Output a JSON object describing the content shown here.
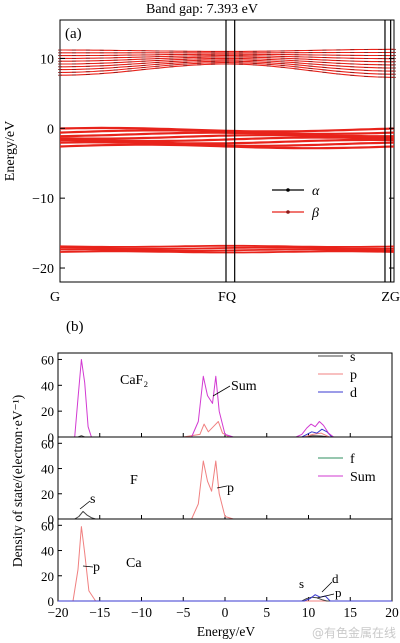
{
  "top_title": "Band gap: 7.393 eV",
  "watermark": "@有色金属在线",
  "colors": {
    "alpha": "#000000",
    "beta": "#e8231b",
    "s": "#444444",
    "p": "#f08080",
    "d": "#3a3ad0",
    "f": "#2f8f5f",
    "sum": "#d23ad2",
    "axis": "#000000"
  },
  "chart_data": [
    {
      "type": "line",
      "panel_label": "(a)",
      "ylabel": "Energy/eV",
      "ylim": [
        -22,
        15.5
      ],
      "yticks": [
        10,
        0,
        -10,
        -20
      ],
      "xticks": [
        {
          "label": "G",
          "x": 0
        },
        {
          "label": "FQ",
          "x": 0.5
        },
        {
          "label": "ZG",
          "x": 1.0
        }
      ],
      "high_symmetry_lines": [
        0.497,
        0.523,
        0.973,
        0.99
      ],
      "legend": {
        "placement": "lower-right",
        "entries": [
          "α",
          "β"
        ]
      },
      "series": [
        {
          "name": "β",
          "bands_group": "conduction",
          "edges_left": [
            7.6,
            11.2
          ],
          "edges_mid": [
            9.2,
            11.0
          ],
          "edges_right": [
            7.3,
            11.3
          ],
          "count": 10
        },
        {
          "name": "β",
          "bands_group": "valence",
          "edges": [
            -2.6,
            -0.2
          ],
          "count": 8
        },
        {
          "name": "β",
          "bands_group": "core",
          "edges": [
            -17.7,
            -16.9
          ],
          "count": 4
        }
      ]
    },
    {
      "type": "line",
      "panel_label": "(b)",
      "ylabel": "Density of state/(electron·eV⁻¹)",
      "xlabel": "Energy/eV",
      "xlim": [
        -20,
        20
      ],
      "xticks": [
        -20,
        -15,
        -10,
        -5,
        0,
        5,
        10,
        15,
        20
      ],
      "panels": [
        {
          "label": "CaF₂",
          "ylim": [
            0,
            65
          ],
          "yticks": [
            0,
            20,
            40,
            60
          ],
          "legend": [
            "s",
            "p",
            "d"
          ],
          "annotations": [
            "Sum"
          ],
          "series": [
            {
              "name": "s",
              "x": [
                -20,
                -17.6,
                -17.2,
                -16.8,
                -16.4,
                -12,
                9.5,
                10.5,
                11.5,
                12.5,
                20
              ],
              "y": [
                0,
                0,
                1,
                0,
                0,
                0,
                0,
                1,
                0.8,
                0,
                0
              ]
            },
            {
              "name": "p",
              "x": [
                -20,
                -5,
                -3,
                -2.5,
                -2,
                -1.4,
                -0.8,
                -0.3,
                0.5,
                9.5,
                10.5,
                11.5,
                12.5,
                20
              ],
              "y": [
                0,
                0,
                2,
                10,
                4,
                8,
                12,
                3,
                0,
                0,
                2,
                3,
                0,
                0
              ]
            },
            {
              "name": "d",
              "x": [
                -20,
                9.2,
                9.8,
                10.4,
                11,
                11.6,
                12.2,
                12.8,
                20
              ],
              "y": [
                0,
                0,
                2,
                4,
                3,
                6,
                4,
                0,
                0
              ]
            },
            {
              "name": "Sum",
              "x": [
                -20,
                -18,
                -17.6,
                -17.2,
                -16.8,
                -16.4,
                -16,
                -4,
                -3.2,
                -2.6,
                -2.1,
                -1.5,
                -1.1,
                -0.7,
                0,
                1,
                8.5,
                9.2,
                9.8,
                10.3,
                10.8,
                11.3,
                11.8,
                12.4,
                13,
                20
              ],
              "y": [
                0,
                0,
                30,
                60,
                42,
                8,
                0,
                0,
                12,
                47,
                32,
                26,
                47,
                20,
                2,
                0,
                0,
                2,
                7,
                10,
                8,
                12,
                9,
                3,
                0,
                0
              ]
            }
          ]
        },
        {
          "label": "F",
          "ylim": [
            0,
            65
          ],
          "yticks": [
            0,
            20,
            40,
            60
          ],
          "legend": [
            "f",
            "Sum"
          ],
          "annotations": [
            "s",
            "p"
          ],
          "series": [
            {
              "name": "s",
              "x": [
                -20,
                -18,
                -17.5,
                -17,
                -16.5,
                -16,
                -15.5,
                20
              ],
              "y": [
                0,
                0,
                2,
                6,
                3,
                1,
                0,
                0
              ]
            },
            {
              "name": "p",
              "x": [
                -20,
                -4,
                -3.2,
                -2.6,
                -2.1,
                -1.6,
                -1.1,
                -0.7,
                0,
                1,
                20
              ],
              "y": [
                0,
                0,
                12,
                46,
                30,
                22,
                46,
                20,
                2,
                0,
                0
              ]
            },
            {
              "name": "f",
              "x": [
                -20,
                20
              ],
              "y": [
                0,
                0
              ]
            }
          ]
        },
        {
          "label": "Ca",
          "ylim": [
            0,
            65
          ],
          "yticks": [
            0,
            20,
            40,
            60
          ],
          "annotations": [
            "p",
            "s",
            "d",
            "p"
          ],
          "series": [
            {
              "name": "p",
              "x": [
                -20,
                -18.2,
                -17.6,
                -17.2,
                -16.8,
                -16.3,
                -15.5,
                20
              ],
              "y": [
                0,
                0,
                25,
                59,
                38,
                8,
                0,
                0
              ]
            },
            {
              "name": "s",
              "x": [
                -20,
                9.2,
                9.8,
                10.4,
                11,
                11.6,
                12.2,
                20
              ],
              "y": [
                0,
                0,
                2,
                3,
                2.5,
                1,
                0,
                0
              ]
            },
            {
              "name": "d",
              "x": [
                -20,
                9.5,
                10.2,
                10.8,
                11.4,
                12,
                12.6,
                20
              ],
              "y": [
                0,
                0,
                2,
                5,
                3,
                4,
                0,
                0
              ]
            }
          ]
        }
      ]
    }
  ]
}
